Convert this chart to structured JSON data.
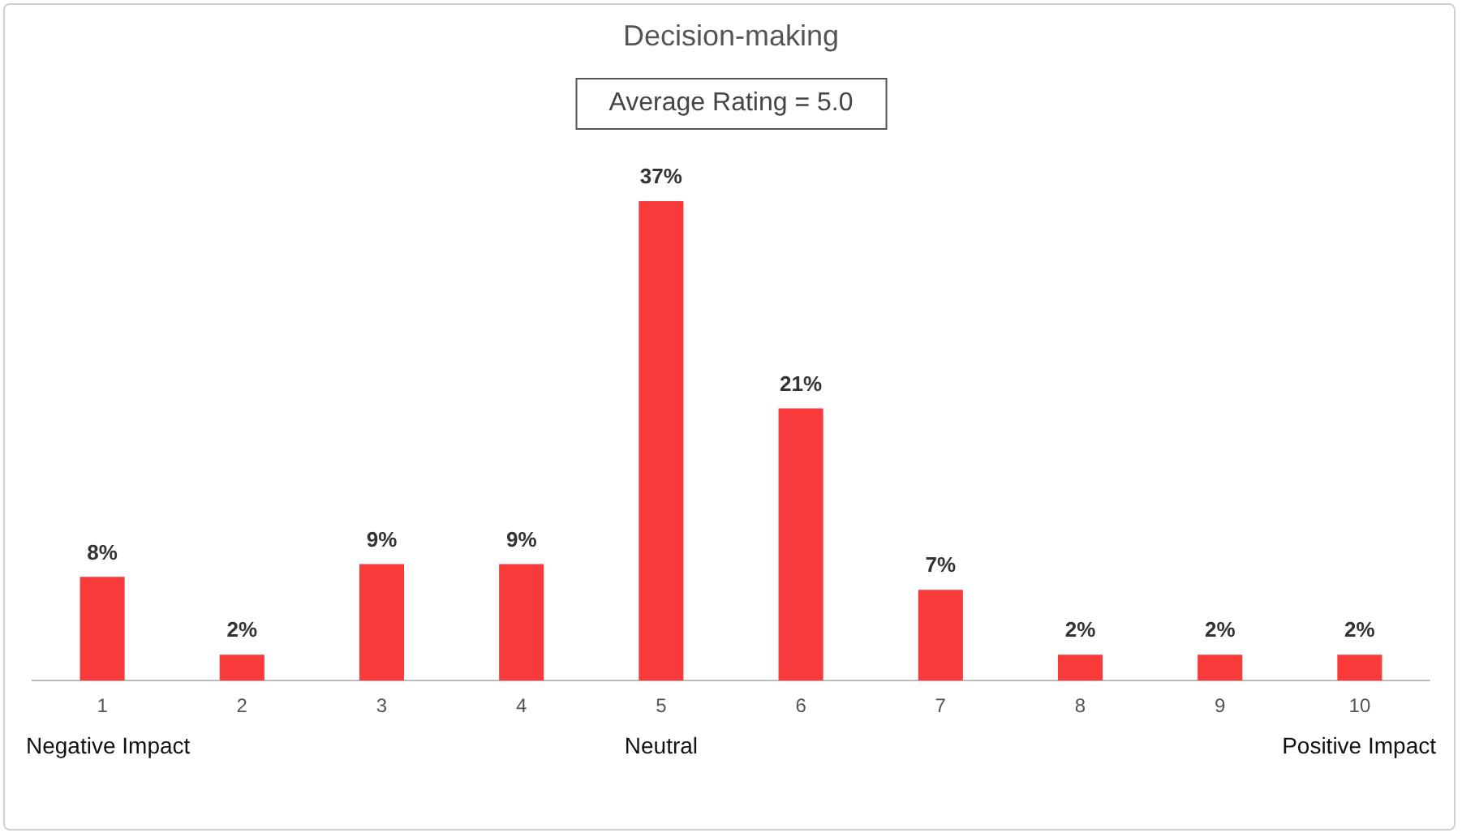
{
  "chart_data": {
    "type": "bar",
    "title": "Decision-making",
    "subtitle": "Average Rating = 5.0",
    "categories": [
      "1",
      "2",
      "3",
      "4",
      "5",
      "6",
      "7",
      "8",
      "9",
      "10"
    ],
    "values": [
      8,
      2,
      9,
      9,
      37,
      21,
      7,
      2,
      2,
      2
    ],
    "value_labels": [
      "8%",
      "2%",
      "9%",
      "9%",
      "37%",
      "21%",
      "7%",
      "2%",
      "2%",
      "2%"
    ],
    "color": "#f83a3a",
    "grid": false,
    "legend": false,
    "tick_labels": "x",
    "annotations": [
      "Negative Impact",
      "Neutral",
      "Positive Impact"
    ]
  }
}
